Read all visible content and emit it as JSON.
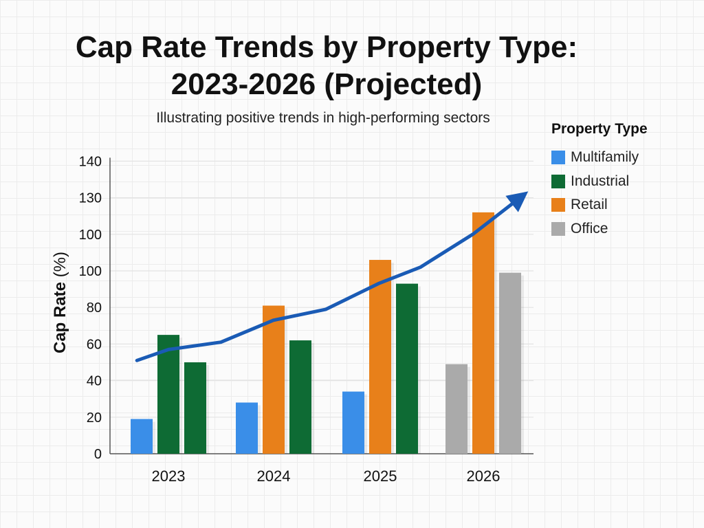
{
  "title_line1": "Cap Rate Trends by Property Type:",
  "title_line2": "2023-2026 (Projected)",
  "subtitle": "Illustrating positive trends in high-performing sectors",
  "legend": {
    "title": "Property Type",
    "items": [
      {
        "label": "Multifamily",
        "color": "#3a8ee8"
      },
      {
        "label": "Industrial",
        "color": "#0e6b34"
      },
      {
        "label": "Retail",
        "color": "#e8801a"
      },
      {
        "label": "Office",
        "color": "#aaaaaa"
      }
    ]
  },
  "chart_data": {
    "type": "bar",
    "ylabel_bold": "Cap Rate",
    "ylabel_rest": " (%)",
    "ytick_labels": [
      "0",
      "20",
      "40",
      "60",
      "80",
      "100",
      "100",
      "130",
      "140"
    ],
    "categories": [
      "2023",
      "2024",
      "2025",
      "2026"
    ],
    "groups": [
      {
        "category": "2023",
        "bars": [
          {
            "series": "Multifamily",
            "value": 19
          },
          {
            "series": "Industrial",
            "value": 65
          },
          {
            "series": "Industrial",
            "value": 50
          }
        ]
      },
      {
        "category": "2024",
        "bars": [
          {
            "series": "Multifamily",
            "value": 28
          },
          {
            "series": "Retail",
            "value": 81
          },
          {
            "series": "Industrial",
            "value": 62
          }
        ]
      },
      {
        "category": "2025",
        "bars": [
          {
            "series": "Multifamily",
            "value": 34
          },
          {
            "series": "Retail",
            "value": 106
          },
          {
            "series": "Industrial",
            "value": 93
          }
        ]
      },
      {
        "category": "2026",
        "bars": [
          {
            "series": "Office",
            "value": 49
          },
          {
            "series": "Retail",
            "value": 132
          },
          {
            "series": "Office",
            "value": 99
          }
        ]
      }
    ],
    "trend_line": {
      "color": "#1a5bb5",
      "points": [
        {
          "x": 2022.7,
          "y": 51
        },
        {
          "x": 2023.0,
          "y": 57
        },
        {
          "x": 2023.5,
          "y": 61
        },
        {
          "x": 2024.0,
          "y": 73
        },
        {
          "x": 2024.5,
          "y": 79
        },
        {
          "x": 2025.0,
          "y": 93
        },
        {
          "x": 2025.4,
          "y": 102
        },
        {
          "x": 2025.9,
          "y": 120
        },
        {
          "x": 2026.35,
          "y": 140
        }
      ]
    },
    "grid": true,
    "legend_position": "right"
  }
}
